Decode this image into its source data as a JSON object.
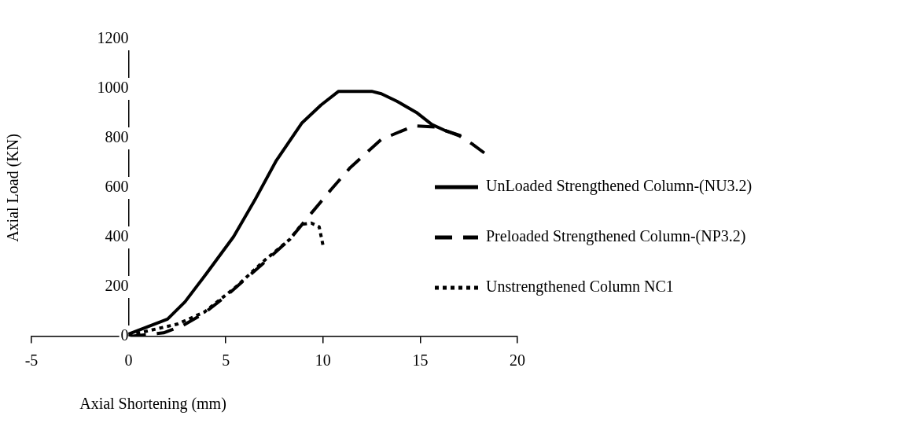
{
  "chart_data": {
    "type": "line",
    "xlabel": "Axial Shortening (mm)",
    "ylabel": "Axial Load (KN)",
    "xlim": [
      -5,
      20
    ],
    "xticks": [
      -5,
      0,
      5,
      10,
      15,
      20
    ],
    "ylim": [
      0,
      1200
    ],
    "yticks": [
      0,
      200,
      400,
      600,
      800,
      1000,
      1200
    ],
    "grid": false,
    "legend": "right",
    "marker": "none",
    "series": [
      {
        "name": "UnLoaded Strengthened Column-(NU3.2)",
        "color": "#000000",
        "line_style": "solid",
        "x": [
          0,
          1.0,
          2.0,
          2.9,
          4.0,
          5.4,
          6.5,
          7.6,
          8.9,
          9.9,
          10.8,
          12.5,
          13.0,
          13.8,
          14.8,
          15.6,
          16.3,
          17.1
        ],
        "values": [
          10,
          40,
          70,
          140,
          254,
          403,
          552,
          711,
          861,
          935,
          990,
          990,
          980,
          950,
          905,
          856,
          831,
          811
        ]
      },
      {
        "name": "Preloaded Strengthened Column-(NP3.2)",
        "color": "#000000",
        "line_style": "dashed",
        "x": [
          0,
          1.8,
          2.8,
          3.9,
          5.1,
          6.9,
          8.3,
          9.4,
          10.4,
          11.4,
          13.0,
          14.7,
          15.8,
          17.0,
          17.7,
          18.3
        ],
        "values": [
          0,
          15,
          45,
          95,
          169,
          294,
          393,
          498,
          592,
          682,
          796,
          851,
          846,
          811,
          776,
          741
        ]
      },
      {
        "name": "Unstrengthened Column NC1",
        "color": "#000000",
        "line_style": "dotted",
        "x": [
          0,
          1.4,
          2.5,
          3.9,
          5.5,
          7.0,
          8.3,
          8.9,
          9.4,
          9.8,
          10.0
        ],
        "values": [
          5,
          30,
          50,
          99,
          199,
          308,
          393,
          453,
          458,
          443,
          368
        ]
      }
    ]
  }
}
